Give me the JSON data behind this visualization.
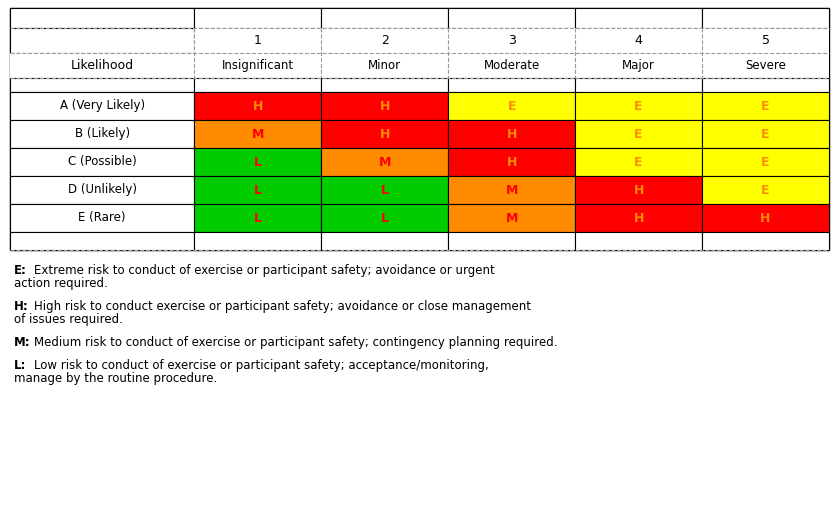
{
  "col_headers_row1": [
    "",
    "1",
    "2",
    "3",
    "4",
    "5"
  ],
  "col_headers_row2": [
    "Likelihood",
    "Insignificant",
    "Minor",
    "Moderate",
    "Major",
    "Severe"
  ],
  "rows": [
    {
      "label": "A (Very Likely)",
      "cells": [
        "H",
        "H",
        "E",
        "E",
        "E"
      ]
    },
    {
      "label": "B (Likely)",
      "cells": [
        "M",
        "H",
        "H",
        "E",
        "E"
      ]
    },
    {
      "label": "C (Possible)",
      "cells": [
        "L",
        "M",
        "H",
        "E",
        "E"
      ]
    },
    {
      "label": "D (Unlikely)",
      "cells": [
        "L",
        "L",
        "M",
        "H",
        "E"
      ]
    },
    {
      "label": "E (Rare)",
      "cells": [
        "L",
        "L",
        "M",
        "H",
        "H"
      ]
    }
  ],
  "colors": {
    "E": "#FFFF00",
    "H": "#FF0000",
    "M": "#FF8C00",
    "L": "#00CC00"
  },
  "text_colors": {
    "E": "#FF8C00",
    "H": "#FF8C00",
    "M": "#FF0000",
    "L": "#FF0000"
  },
  "legend_items": [
    {
      "key": "E",
      "line1": "Extreme risk to conduct of exercise or participant safety; avoidance or urgent",
      "line2": "action required."
    },
    {
      "key": "H",
      "line1": "High risk to conduct exercise or participant safety; avoidance or close management",
      "line2": "of issues required."
    },
    {
      "key": "M",
      "line1": "Medium risk to conduct of exercise or participant safety; contingency planning required.",
      "line2": ""
    },
    {
      "key": "L",
      "line1": "Low risk to conduct of exercise or participant safety; acceptance/monitoring,",
      "line2": "manage by the routine procedure."
    }
  ],
  "background_color": "#FFFFFF",
  "solid_border": "#000000",
  "dashed_color": "#999999",
  "figwidth": 8.39,
  "figheight": 5.24,
  "dpi": 100
}
